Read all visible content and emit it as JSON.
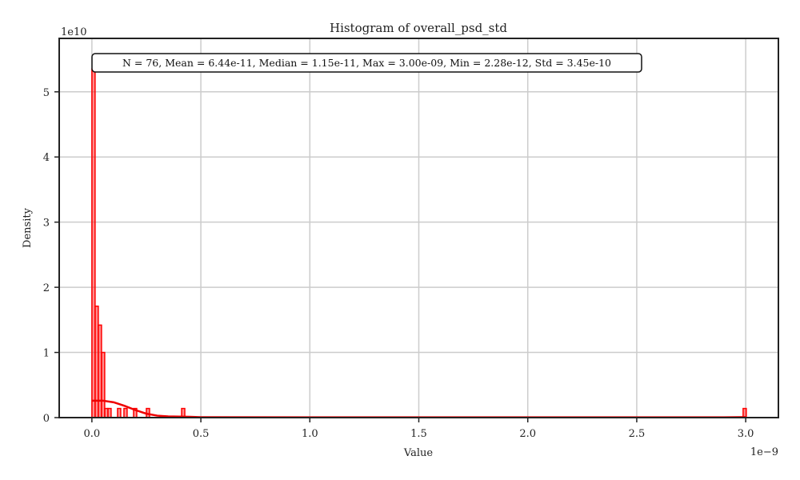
{
  "chart_data": {
    "type": "bar",
    "title": "Histogram of overall_psd_std",
    "xlabel": "Value",
    "ylabel": "Density",
    "x_offset_text": "1e−9",
    "y_offset_text": "1e10",
    "xlim": [
      -0.15,
      3.15
    ],
    "ylim": [
      0,
      5.82
    ],
    "x_ticks": [
      {
        "value": 0.0,
        "label": "0.0"
      },
      {
        "value": 0.5,
        "label": "0.5"
      },
      {
        "value": 1.0,
        "label": "1.0"
      },
      {
        "value": 1.5,
        "label": "1.5"
      },
      {
        "value": 2.0,
        "label": "2.0"
      },
      {
        "value": 2.5,
        "label": "2.5"
      },
      {
        "value": 3.0,
        "label": "3.0"
      }
    ],
    "y_ticks": [
      {
        "value": 0,
        "label": "0"
      },
      {
        "value": 1,
        "label": "1"
      },
      {
        "value": 2,
        "label": "2"
      },
      {
        "value": 3,
        "label": "3"
      },
      {
        "value": 4,
        "label": "4"
      },
      {
        "value": 5,
        "label": "5"
      }
    ],
    "grid": true,
    "stats_text": "N = 76, Mean = 6.44e-11, Median = 1.15e-11, Max = 3.00e-09, Min = 2.28e-12, Std = 3.45e-10",
    "bar_color": "#ff0000",
    "bars": [
      {
        "x0": 0.0,
        "x1": 0.0147,
        "density": 5.35
      },
      {
        "x0": 0.0147,
        "x1": 0.0294,
        "density": 1.71
      },
      {
        "x0": 0.0294,
        "x1": 0.0441,
        "density": 1.42
      },
      {
        "x0": 0.0441,
        "x1": 0.0588,
        "density": 1.0
      },
      {
        "x0": 0.0588,
        "x1": 0.0735,
        "density": 0.14
      },
      {
        "x0": 0.0735,
        "x1": 0.0882,
        "density": 0.14
      },
      {
        "x0": 0.0882,
        "x1": 0.1029,
        "density": 0.0
      },
      {
        "x0": 0.1029,
        "x1": 0.1176,
        "density": 0.0
      },
      {
        "x0": 0.1176,
        "x1": 0.1323,
        "density": 0.14
      },
      {
        "x0": 0.1323,
        "x1": 0.147,
        "density": 0.0
      },
      {
        "x0": 0.147,
        "x1": 0.1617,
        "density": 0.14
      },
      {
        "x0": 0.1617,
        "x1": 0.1764,
        "density": 0.0
      },
      {
        "x0": 0.1764,
        "x1": 0.1911,
        "density": 0.0
      },
      {
        "x0": 0.1911,
        "x1": 0.2058,
        "density": 0.14
      },
      {
        "x0": 0.2058,
        "x1": 0.2205,
        "density": 0.0
      },
      {
        "x0": 0.2205,
        "x1": 0.2352,
        "density": 0.0
      },
      {
        "x0": 0.2352,
        "x1": 0.2499,
        "density": 0.0
      },
      {
        "x0": 0.2499,
        "x1": 0.2646,
        "density": 0.14
      },
      {
        "x0": 0.4116,
        "x1": 0.4263,
        "density": 0.14
      },
      {
        "x0": 2.988,
        "x1": 3.0027,
        "density": 0.14
      }
    ],
    "kde": [
      {
        "x": 0.0,
        "y": 0.26
      },
      {
        "x": 0.05,
        "y": 0.26
      },
      {
        "x": 0.1,
        "y": 0.235
      },
      {
        "x": 0.15,
        "y": 0.18
      },
      {
        "x": 0.2,
        "y": 0.115
      },
      {
        "x": 0.25,
        "y": 0.06
      },
      {
        "x": 0.3,
        "y": 0.03
      },
      {
        "x": 0.35,
        "y": 0.018
      },
      {
        "x": 0.4,
        "y": 0.015
      },
      {
        "x": 0.45,
        "y": 0.012
      },
      {
        "x": 0.5,
        "y": 0.006
      },
      {
        "x": 1.0,
        "y": 0.004
      },
      {
        "x": 2.0,
        "y": 0.004
      },
      {
        "x": 2.9,
        "y": 0.005
      },
      {
        "x": 3.0,
        "y": 0.008
      }
    ]
  }
}
